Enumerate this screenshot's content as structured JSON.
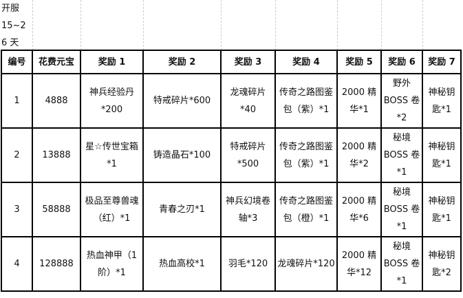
{
  "note": "开服\n15~2\n6 天",
  "headers": [
    "编号",
    "花费元宝",
    "奖励 1",
    "奖励 2",
    "奖励 3",
    "奖励 4",
    "奖励 5",
    "奖励 6",
    "奖励 7"
  ],
  "rows": [
    [
      "1",
      "4888",
      "神兵经验丹\n*200",
      "特戒碎片*600",
      "龙魂碎片\n*40",
      "传奇之路图鉴\n包（紫）*1",
      "2000 精\n华*1",
      "野外\nBOSS 卷\n*2",
      "神秘钥\n匙*1"
    ],
    [
      "2",
      "13888",
      "星☆传世宝箱\n*1",
      "铸造晶石*100",
      "特戒碎片\n*500",
      "传奇之路图鉴\n包（紫）*1",
      "2000 精\n华*2",
      "秘境\nBOSS 卷\n*1",
      "神秘钥\n匙*1"
    ],
    [
      "3",
      "58888",
      "极品至尊兽魂\n（红）*1",
      "青春之刃*1",
      "神兵幻境卷\n轴*3",
      "传奇之路图鉴\n包（橙）*1",
      "2000 精\n华*6",
      "秘境\nBOSS 卷\n*1",
      "神秘钥\n匙*1"
    ],
    [
      "4",
      "128888",
      "热血神甲（1\n阶）*1",
      "热血高校*1",
      "羽毛*120",
      "龙魂碎片*120",
      "2000 精\n华*12",
      "秘境\nBOSS 卷\n*1",
      "神秘钥\n匙*2"
    ]
  ]
}
